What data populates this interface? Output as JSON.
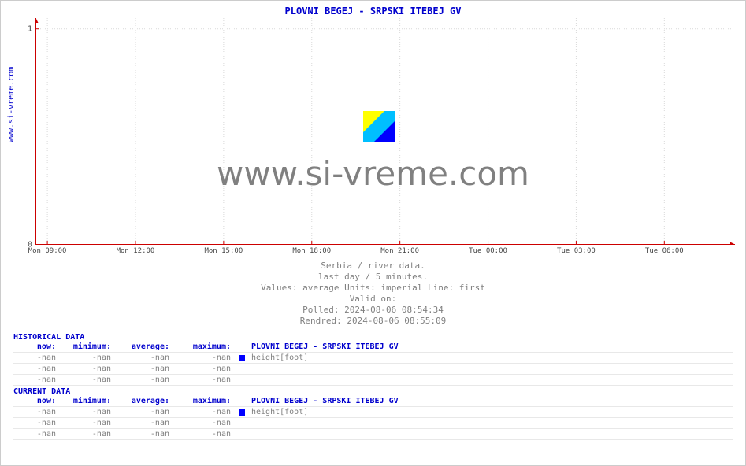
{
  "chart": {
    "title": "PLOVNI BEGEJ -  SRPSKI ITEBEJ GV",
    "title_color": "#0000cd",
    "title_fontsize": 12,
    "ylabel_text": "www.si-vreme.com",
    "ylabel_color": "#0000cd",
    "background_color": "#ffffff",
    "plot_bg": "#ffffff",
    "grid_color": "#d9d9d9",
    "axis_color": "#cc0000",
    "tick_label_color": "#444444",
    "ylim": [
      0,
      1.05
    ],
    "yticks": [
      0,
      1
    ],
    "xticks": [
      "Mon 09:00",
      "Mon 12:00",
      "Mon 15:00",
      "Mon 18:00",
      "Mon 21:00",
      "Tue 00:00",
      "Tue 03:00",
      "Tue 06:00"
    ],
    "xtick_positions": [
      0.017,
      0.143,
      0.269,
      0.395,
      0.521,
      0.647,
      0.773,
      0.899
    ],
    "series": [],
    "watermark_text": "www.si-vreme.com",
    "watermark_color": "#808080",
    "watermark_fontsize": 42,
    "logo_colors": {
      "tri_top": "#ffff00",
      "tri_bottom": "#0000ff",
      "diag": "#00bfff"
    }
  },
  "meta": {
    "line1": "Serbia / river data.",
    "line2": "last day / 5 minutes.",
    "line3": "Values: average  Units: imperial  Line: first",
    "line4": "Valid on:",
    "line5": "Polled: 2024-08-06 08:54:34",
    "line6": "Rendred: 2024-08-06 08:55:09",
    "color": "#808080"
  },
  "tables": {
    "header_color": "#0000cd",
    "value_color": "#808080",
    "swatch_color": "#0000ff",
    "cols": {
      "now": "now:",
      "min": "minimum:",
      "avg": "average:",
      "max": "maximum:"
    },
    "historical": {
      "title": "HISTORICAL DATA",
      "station_label": "PLOVNI BEGEJ -  SRPSKI ITEBEJ GV",
      "unit_label": "height[foot]",
      "rows": [
        {
          "now": "-nan",
          "min": "-nan",
          "avg": "-nan",
          "max": "-nan",
          "swatch": true,
          "label": "height[foot]"
        },
        {
          "now": "-nan",
          "min": "-nan",
          "avg": "-nan",
          "max": "-nan",
          "swatch": false,
          "label": ""
        },
        {
          "now": "-nan",
          "min": "-nan",
          "avg": "-nan",
          "max": "-nan",
          "swatch": false,
          "label": ""
        }
      ]
    },
    "current": {
      "title": "CURRENT DATA",
      "station_label": "PLOVNI BEGEJ -  SRPSKI ITEBEJ GV",
      "unit_label": "height[foot]",
      "rows": [
        {
          "now": "-nan",
          "min": "-nan",
          "avg": "-nan",
          "max": "-nan",
          "swatch": true,
          "label": "height[foot]"
        },
        {
          "now": "-nan",
          "min": "-nan",
          "avg": "-nan",
          "max": "-nan",
          "swatch": false,
          "label": ""
        },
        {
          "now": "-nan",
          "min": "-nan",
          "avg": "-nan",
          "max": "-nan",
          "swatch": false,
          "label": ""
        }
      ]
    }
  }
}
